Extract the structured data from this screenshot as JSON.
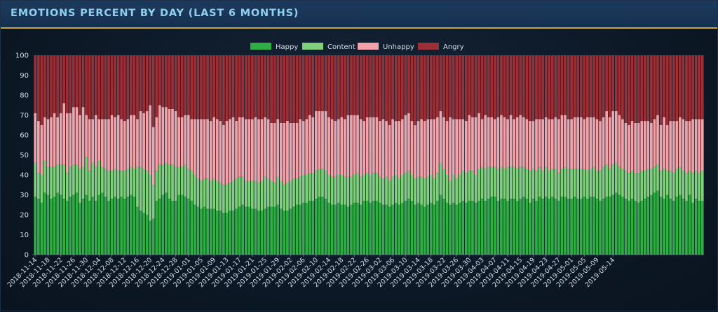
{
  "title": "EMOTIONS PERCENT BY DAY (LAST 6 MONTHS)",
  "chart_data": {
    "type": "bar",
    "stacked": true,
    "title": "EMOTIONS PERCENT BY DAY (LAST 6 MONTHS)",
    "xlabel": "",
    "ylabel": "",
    "ylim": [
      0,
      100
    ],
    "yticks": [
      0,
      10,
      20,
      30,
      40,
      50,
      60,
      70,
      80,
      90,
      100
    ],
    "grid": false,
    "legend_position": "top-center",
    "start_date": "2018-11-14",
    "end_date": "2019-05-15",
    "x_tick_labels": [
      "2018-11-14",
      "2018-11-18",
      "2018-11-22",
      "2018-11-26",
      "2018-11-30",
      "2018-12-04",
      "2018-12-08",
      "2018-12-12",
      "2018-12-16",
      "2018-12-20",
      "2018-12-24",
      "2018-12-28",
      "2019-01-01",
      "2019-01-05",
      "2019-01-09",
      "2019-01-13",
      "2019-01-17",
      "2019-01-21",
      "2019-01-25",
      "2019-01-29",
      "2019-02-02",
      "2019-02-06",
      "2019-02-10",
      "2019-02-14",
      "2019-02-18",
      "2019-02-22",
      "2019-02-26",
      "2019-03-02",
      "2019-03-06",
      "2019-03-10",
      "2019-03-14",
      "2019-03-18",
      "2019-03-22",
      "2019-03-26",
      "2019-03-30",
      "2019-04-03",
      "2019-04-07",
      "2019-04-11",
      "2019-04-15",
      "2019-04-19",
      "2019-04-23",
      "2019-04-27",
      "2019-05-01",
      "2019-05-05",
      "2019-05-09",
      "2019-05-14"
    ],
    "series": [
      {
        "name": "Happy",
        "color": "#2fae44",
        "values": [
          29,
          28,
          26,
          31,
          30,
          28,
          29,
          31,
          30,
          28,
          27,
          29,
          30,
          31,
          26,
          28,
          30,
          27,
          29,
          27,
          30,
          31,
          29,
          27,
          28,
          29,
          28,
          29,
          28,
          29,
          30,
          29,
          24,
          22,
          21,
          20,
          17,
          18,
          27,
          28,
          30,
          31,
          28,
          27,
          27,
          30,
          30,
          29,
          28,
          27,
          25,
          24,
          23,
          24,
          23,
          23,
          23,
          22,
          22,
          21,
          21,
          22,
          22,
          23,
          24,
          25,
          24,
          24,
          23,
          23,
          22,
          22,
          23,
          24,
          24,
          24,
          25,
          23,
          22,
          22,
          23,
          24,
          25,
          25,
          26,
          26,
          27,
          27,
          28,
          29,
          29,
          28,
          26,
          25,
          25,
          26,
          25,
          25,
          24,
          25,
          26,
          26,
          25,
          27,
          27,
          26,
          27,
          27,
          26,
          25,
          25,
          24,
          25,
          26,
          25,
          26,
          27,
          28,
          27,
          25,
          26,
          25,
          24,
          25,
          26,
          25,
          27,
          30,
          28,
          26,
          25,
          26,
          25,
          26,
          27,
          26,
          27,
          27,
          26,
          27,
          28,
          27,
          28,
          29,
          29,
          27,
          28,
          28,
          27,
          28,
          28,
          27,
          28,
          29,
          28,
          26,
          28,
          27,
          29,
          28,
          29,
          28,
          29,
          28,
          27,
          29,
          29,
          28,
          28,
          29,
          28,
          28,
          29,
          28,
          29,
          29,
          28,
          27,
          28,
          29,
          29,
          30,
          31,
          30,
          29,
          28,
          27,
          28,
          27,
          26,
          27,
          28,
          29,
          30,
          31,
          32,
          29,
          28,
          30,
          28,
          27,
          29,
          30,
          28,
          27,
          30,
          26,
          28,
          27,
          27
        ]
      },
      {
        "name": "Content",
        "color": "#7fd07a",
        "values": [
          17,
          13,
          14,
          16,
          14,
          16,
          15,
          14,
          15,
          17,
          14,
          15,
          15,
          14,
          17,
          16,
          19,
          15,
          17,
          17,
          17,
          13,
          14,
          15,
          14,
          14,
          14,
          13,
          14,
          14,
          14,
          14,
          20,
          22,
          22,
          22,
          23,
          17,
          15,
          17,
          15,
          15,
          17,
          18,
          17,
          14,
          14,
          16,
          15,
          15,
          15,
          14,
          14,
          14,
          15,
          14,
          15,
          15,
          14,
          14,
          14,
          14,
          15,
          15,
          15,
          14,
          13,
          13,
          14,
          14,
          14,
          15,
          16,
          14,
          13,
          12,
          14,
          14,
          13,
          14,
          14,
          14,
          13,
          14,
          14,
          14,
          14,
          14,
          14,
          14,
          14,
          14,
          14,
          14,
          14,
          14,
          15,
          14,
          15,
          14,
          14,
          15,
          14,
          13,
          14,
          14,
          14,
          14,
          13,
          13,
          14,
          13,
          14,
          14,
          13,
          14,
          14,
          14,
          13,
          13,
          13,
          14,
          14,
          14,
          14,
          13,
          14,
          16,
          15,
          14,
          12,
          14,
          13,
          14,
          15,
          15,
          15,
          15,
          14,
          16,
          16,
          16,
          16,
          15,
          15,
          16,
          16,
          15,
          17,
          16,
          16,
          16,
          16,
          15,
          15,
          16,
          15,
          15,
          15,
          14,
          15,
          14,
          14,
          15,
          14,
          14,
          15,
          15,
          15,
          14,
          15,
          15,
          14,
          14,
          14,
          15,
          14,
          15,
          16,
          16,
          14,
          15,
          15,
          14,
          14,
          14,
          14,
          14,
          14,
          15,
          15,
          14,
          14,
          13,
          13,
          13,
          13,
          15,
          12,
          14,
          14,
          14,
          14,
          14,
          14,
          12,
          15,
          14,
          14,
          15
        ]
      },
      {
        "name": "Unhappy",
        "color": "#f2a3aa",
        "values": [
          25,
          26,
          25,
          22,
          24,
          25,
          27,
          24,
          26,
          31,
          30,
          27,
          29,
          29,
          27,
          30,
          21,
          26,
          22,
          26,
          21,
          24,
          25,
          26,
          28,
          26,
          28,
          26,
          25,
          25,
          26,
          27,
          24,
          28,
          28,
          30,
          35,
          29,
          27,
          30,
          29,
          28,
          28,
          28,
          28,
          25,
          25,
          25,
          27,
          26,
          28,
          30,
          31,
          30,
          30,
          30,
          31,
          31,
          31,
          30,
          32,
          32,
          32,
          29,
          30,
          30,
          31,
          31,
          31,
          32,
          32,
          31,
          30,
          30,
          29,
          30,
          29,
          29,
          31,
          31,
          29,
          28,
          28,
          29,
          27,
          28,
          29,
          28,
          30,
          29,
          29,
          30,
          29,
          29,
          28,
          28,
          29,
          29,
          31,
          31,
          30,
          29,
          29,
          27,
          28,
          29,
          28,
          28,
          28,
          30,
          28,
          28,
          29,
          27,
          29,
          28,
          29,
          29,
          27,
          27,
          28,
          29,
          29,
          29,
          28,
          30,
          28,
          26,
          26,
          27,
          32,
          28,
          30,
          28,
          26,
          26,
          28,
          27,
          29,
          28,
          24,
          27,
          25,
          25,
          24,
          26,
          26,
          26,
          24,
          26,
          24,
          26,
          26,
          25,
          25,
          25,
          24,
          26,
          24,
          26,
          25,
          26,
          25,
          26,
          27,
          27,
          26,
          25,
          25,
          26,
          26,
          26,
          25,
          27,
          26,
          25,
          26,
          25,
          25,
          27,
          26,
          27,
          26,
          26,
          25,
          24,
          24,
          25,
          25,
          25,
          25,
          25,
          24,
          23,
          24,
          25,
          23,
          26,
          23,
          25,
          26,
          24,
          25,
          26,
          26,
          25,
          27,
          26,
          27,
          26
        ]
      }
    ],
    "remainder_series": {
      "name": "Angry",
      "color": "#9b2f35",
      "note_value": "100 minus the other three"
    }
  }
}
